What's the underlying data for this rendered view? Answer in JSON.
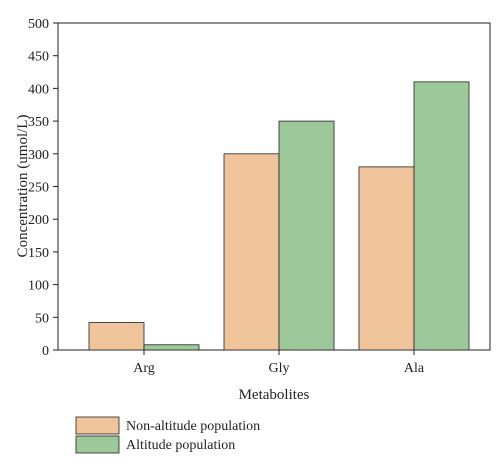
{
  "chart_data": {
    "type": "bar",
    "title": "",
    "xlabel": "Metabolites",
    "ylabel": "Concentration (umol/L)",
    "categories": [
      "Arg",
      "Gly",
      "Ala"
    ],
    "ylim": [
      0,
      500
    ],
    "yticks": [
      0,
      50,
      100,
      150,
      200,
      250,
      300,
      350,
      400,
      450,
      500
    ],
    "grid": false,
    "legend_position": "bottom-left",
    "series": [
      {
        "name": "Non-altitude population",
        "values": [
          42,
          300,
          280
        ],
        "color": "#f0c49a"
      },
      {
        "name": "Altitude population",
        "values": [
          8,
          350,
          410
        ],
        "color": "#9cc89a"
      }
    ]
  }
}
